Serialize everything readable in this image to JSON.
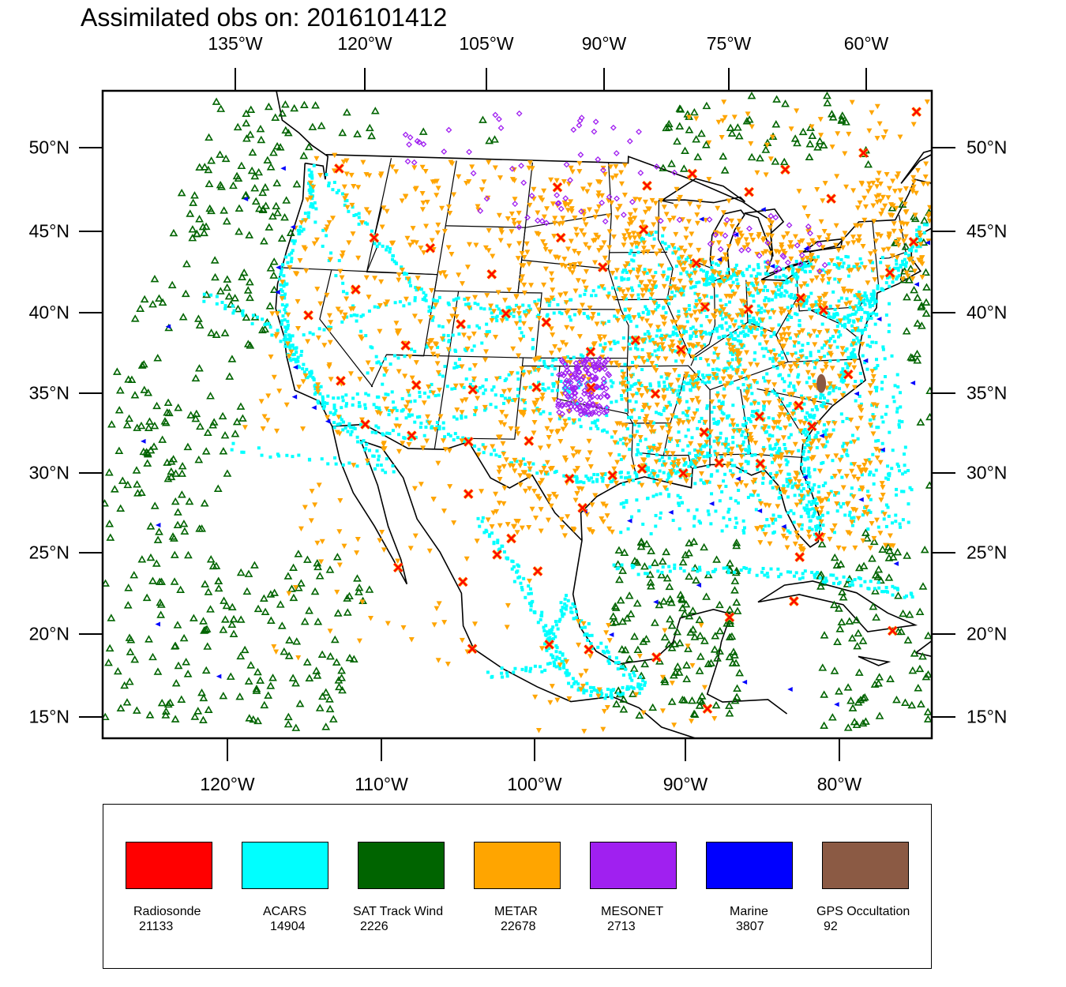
{
  "title": "Assimilated obs on: 2016101412",
  "top_axis_labels": [
    "135°W",
    "120°W",
    "105°W",
    "90°W",
    "75°W",
    "60°W"
  ],
  "bottom_axis_labels": [
    "120°W",
    "110°W",
    "100°W",
    "90°W",
    "80°W"
  ],
  "left_axis_labels": [
    "50°N",
    "45°N",
    "40°N",
    "35°N",
    "30°N",
    "25°N",
    "20°N",
    "15°N"
  ],
  "right_axis_labels": [
    "50°N",
    "45°N",
    "40°N",
    "35°N",
    "30°N",
    "25°N",
    "20°N",
    "15°N"
  ],
  "legend": [
    {
      "name": "Radiosonde",
      "count": "21133",
      "color": "#ff0000",
      "marker": "cross"
    },
    {
      "name": "ACARS",
      "count": "14904",
      "color": "#00ffff",
      "marker": "square"
    },
    {
      "name": "SAT Track Wind",
      "count": "2226",
      "color": "#006400",
      "marker": "triangle"
    },
    {
      "name": "METAR",
      "count": "22678",
      "color": "#ffa500",
      "marker": "down-triangle"
    },
    {
      "name": "MESONET",
      "count": "2713",
      "color": "#a020f0",
      "marker": "diamond"
    },
    {
      "name": "Marine",
      "count": "3807",
      "color": "#0000ff",
      "marker": "left-triangle"
    },
    {
      "name": "GPS Occultation",
      "count": "92",
      "color": "#8b5a44",
      "marker": "blob"
    }
  ],
  "observation_points": {
    "Radiosonde": [
      [
        -121.5,
        48.2
      ],
      [
        -117.0,
        44.1
      ],
      [
        -112.0,
        43.6
      ],
      [
        -106.4,
        42.1
      ],
      [
        -101.5,
        47.5
      ],
      [
        -100.8,
        44.4
      ],
      [
        -97.0,
        42.6
      ],
      [
        -93.4,
        47.6
      ],
      [
        -89.3,
        48.3
      ],
      [
        -93.6,
        44.9
      ],
      [
        -89.0,
        42.8
      ],
      [
        -84.2,
        47.1
      ],
      [
        -80.8,
        48.4
      ],
      [
        -76.9,
        46.5
      ],
      [
        -73.5,
        49.2
      ],
      [
        -68.0,
        51.5
      ],
      [
        -70.2,
        43.6
      ],
      [
        -66.9,
        46.0
      ],
      [
        -72.6,
        41.8
      ],
      [
        -78.5,
        39.7
      ],
      [
        -80.3,
        40.5
      ],
      [
        -84.7,
        39.9
      ],
      [
        -88.3,
        40.1
      ],
      [
        -90.3,
        37.5
      ],
      [
        -94.0,
        38.1
      ],
      [
        -97.6,
        37.4
      ],
      [
        -101.4,
        39.2
      ],
      [
        -104.8,
        39.7
      ],
      [
        -108.4,
        39.0
      ],
      [
        -112.6,
        37.6
      ],
      [
        -117.6,
        40.9
      ],
      [
        -121.0,
        39.2
      ],
      [
        -117.2,
        35.3
      ],
      [
        -111.2,
        35.2
      ],
      [
        -106.7,
        35.0
      ],
      [
        -101.7,
        35.2
      ],
      [
        -97.4,
        35.2
      ],
      [
        -92.3,
        34.8
      ],
      [
        -88.5,
        32.4
      ],
      [
        -84.2,
        33.3
      ],
      [
        -81.1,
        33.9
      ],
      [
        -77.0,
        35.7
      ],
      [
        -80.2,
        32.6
      ],
      [
        -84.3,
        30.4
      ],
      [
        -87.4,
        30.5
      ],
      [
        -90.1,
        29.9
      ],
      [
        -93.2,
        30.2
      ],
      [
        -95.4,
        29.8
      ],
      [
        -97.5,
        27.8
      ],
      [
        -98.6,
        29.6
      ],
      [
        -101.9,
        31.9
      ],
      [
        -106.5,
        31.8
      ],
      [
        -110.9,
        32.1
      ],
      [
        -114.6,
        32.7
      ],
      [
        -106.0,
        28.6
      ],
      [
        -102.5,
        25.9
      ],
      [
        -104.4,
        19.1
      ],
      [
        -99.2,
        19.4
      ],
      [
        -96.5,
        19.1
      ],
      [
        -100.4,
        23.9
      ],
      [
        -103.4,
        24.9
      ],
      [
        -105.6,
        23.2
      ],
      [
        -110.3,
        24.0
      ],
      [
        -91.9,
        18.6
      ],
      [
        -88.5,
        15.4
      ],
      [
        -86.9,
        21.0
      ],
      [
        -80.3,
        25.8
      ],
      [
        -81.8,
        24.6
      ],
      [
        -82.4,
        21.9
      ],
      [
        -75.8,
        19.9
      ]
    ],
    "ACARS_routes": [
      [
        [
          -122.4,
          37.7
        ],
        [
          -118.2,
          34.0
        ],
        [
          -112.0,
          33.4
        ],
        [
          -104.7,
          39.8
        ],
        [
          -97.0,
          32.9
        ],
        [
          -87.9,
          41.9
        ],
        [
          -84.4,
          33.6
        ],
        [
          -73.8,
          40.6
        ]
      ],
      [
        [
          -122.3,
          47.5
        ],
        [
          -116.2,
          43.6
        ],
        [
          -111.9,
          40.7
        ],
        [
          -104.7,
          39.8
        ],
        [
          -94.7,
          39.3
        ],
        [
          -87.9,
          41.9
        ],
        [
          -83.3,
          42.2
        ],
        [
          -71.0,
          42.3
        ]
      ],
      [
        [
          -118.2,
          34.0
        ],
        [
          -106.6,
          35.1
        ],
        [
          -97.0,
          32.9
        ],
        [
          -90.2,
          29.9
        ],
        [
          -84.4,
          33.6
        ],
        [
          -81.3,
          28.4
        ],
        [
          -80.2,
          25.8
        ]
      ],
      [
        [
          -122.6,
          45.6
        ],
        [
          -112.0,
          33.4
        ],
        [
          -106.6,
          31.8
        ],
        [
          -98.5,
          29.5
        ],
        [
          -95.3,
          29.7
        ],
        [
          -90.2,
          29.9
        ],
        [
          -86.8,
          33.6
        ],
        [
          -82.5,
          27.9
        ]
      ],
      [
        [
          -115.1,
          36.1
        ],
        [
          -104.7,
          39.8
        ],
        [
          -96.0,
          41.3
        ],
        [
          -93.2,
          44.9
        ],
        [
          -87.9,
          41.9
        ],
        [
          -80.2,
          40.4
        ],
        [
          -77.0,
          38.9
        ],
        [
          -74.2,
          40.7
        ]
      ],
      [
        [
          -117.2,
          32.7
        ],
        [
          -110.9,
          32.1
        ],
        [
          -101.8,
          35.2
        ],
        [
          -97.5,
          35.4
        ],
        [
          -90.0,
          35.1
        ],
        [
          -86.8,
          36.1
        ],
        [
          -84.5,
          39.1
        ],
        [
          -80.0,
          32.9
        ]
      ],
      [
        [
          -122.4,
          37.7
        ],
        [
          -111.9,
          40.7
        ],
        [
          -106.6,
          35.1
        ],
        [
          -97.3,
          37.6
        ],
        [
          -90.4,
          38.7
        ],
        [
          -85.7,
          38.2
        ],
        [
          -81.7,
          41.4
        ],
        [
          -78.7,
          42.9
        ]
      ],
      [
        [
          -98.0,
          22.0
        ],
        [
          -99.5,
          19.5
        ],
        [
          -97.4,
          17.0
        ],
        [
          -95.0,
          16.3
        ],
        [
          -92.6,
          16.8
        ],
        [
          -96.0,
          19.3
        ],
        [
          -98.5,
          22.5
        ]
      ],
      [
        [
          -105.0,
          27.0
        ],
        [
          -102.0,
          24.0
        ],
        [
          -100.0,
          21.0
        ],
        [
          -98.0,
          18.2
        ],
        [
          -103.3,
          17.5
        ]
      ],
      [
        [
          -95.0,
          24.0
        ],
        [
          -88.0,
          24.0
        ],
        [
          -82.0,
          23.5
        ],
        [
          -78.0,
          23.0
        ],
        [
          -74.0,
          22.0
        ]
      ],
      [
        [
          -130.0,
          40.0
        ],
        [
          -122.0,
          37.8
        ],
        [
          -117.0,
          33.0
        ],
        [
          -112.0,
          30.0
        ],
        [
          -125.0,
          31.0
        ]
      ],
      [
        [
          -124.0,
          48.0
        ],
        [
          -123.0,
          46.0
        ],
        [
          -124.0,
          42.0
        ],
        [
          -123.0,
          39.0
        ],
        [
          -121.0,
          36.0
        ]
      ],
      [
        [
          -80.0,
          26.5
        ],
        [
          -81.0,
          30.0
        ],
        [
          -80.5,
          33.0
        ],
        [
          -77.5,
          35.5
        ],
        [
          -76.0,
          38.0
        ],
        [
          -74.0,
          40.5
        ],
        [
          -71.0,
          42.5
        ],
        [
          -69.0,
          44.5
        ]
      ]
    ],
    "METAR_regions": [
      [
        -124,
        -114,
        32,
        49,
        140
      ],
      [
        -114,
        -104,
        31,
        49,
        190
      ],
      [
        -104,
        -95,
        26,
        49,
        360
      ],
      [
        -95,
        -85,
        29,
        47,
        430
      ],
      [
        -85,
        -75,
        25,
        45,
        420
      ],
      [
        -75,
        -67,
        41,
        48,
        130
      ],
      [
        -118,
        -100,
        18,
        31,
        70
      ],
      [
        -100,
        -88,
        14,
        21,
        40
      ],
      [
        -91,
        -64,
        45,
        53,
        70
      ]
    ],
    "SAT_regions": [
      [
        -135,
        -124,
        14,
        52,
        320
      ],
      [
        -124,
        -112,
        14,
        25,
        130
      ],
      [
        -95,
        -86,
        15,
        26,
        150
      ],
      [
        -81,
        -66,
        14,
        26,
        190
      ],
      [
        -72,
        -64,
        27,
        46,
        150
      ],
      [
        -92,
        -73,
        48,
        53,
        60
      ],
      [
        -124,
        -106,
        50,
        53,
        10
      ]
    ],
    "MESONET_regions": [
      [
        -100,
        -96,
        33.5,
        37,
        150
      ],
      [
        -110,
        -90,
        45,
        52,
        50
      ],
      [
        -88,
        -78,
        42,
        46,
        30
      ],
      [
        -117,
        -112,
        48,
        51,
        10
      ]
    ],
    "Marine_points": [
      [
        -124.5,
        42.0
      ],
      [
        -124.2,
        44.5
      ],
      [
        -124.0,
        40.5
      ],
      [
        -121.0,
        36.0
      ],
      [
        -120.5,
        34.2
      ],
      [
        -118.8,
        33.6
      ],
      [
        -117.5,
        32.8
      ],
      [
        -126.5,
        48.0
      ],
      [
        -129.0,
        46.0
      ],
      [
        -132.0,
        38.0
      ],
      [
        -131.0,
        31.0
      ],
      [
        -128.0,
        26.0
      ],
      [
        -126.0,
        20.0
      ],
      [
        -121.0,
        17.0
      ],
      [
        -97.3,
        27.6
      ],
      [
        -94.0,
        27.0
      ],
      [
        -91.0,
        27.5
      ],
      [
        -88.0,
        28.0
      ],
      [
        -86.0,
        29.5
      ],
      [
        -84.5,
        27.5
      ],
      [
        -82.8,
        26.5
      ],
      [
        -81.0,
        29.5
      ],
      [
        -79.5,
        32.0
      ],
      [
        -76.5,
        34.5
      ],
      [
        -75.5,
        36.5
      ],
      [
        -74.0,
        39.0
      ],
      [
        -70.5,
        41.0
      ],
      [
        -69.0,
        43.5
      ],
      [
        -66.0,
        44.0
      ],
      [
        -70.0,
        38.0
      ],
      [
        -72.0,
        35.0
      ],
      [
        -75.0,
        31.0
      ],
      [
        -77.0,
        28.0
      ],
      [
        -75.0,
        24.0
      ],
      [
        -69.0,
        30.0
      ],
      [
        -66.0,
        34.0
      ],
      [
        -83.0,
        46.0
      ],
      [
        -85.5,
        44.5
      ],
      [
        -87.0,
        43.0
      ],
      [
        -88.5,
        45.5
      ],
      [
        -79.5,
        43.5
      ],
      [
        -82.5,
        42.5
      ],
      [
        -86.0,
        17.0
      ],
      [
        -80.0,
        15.5
      ],
      [
        -83.0,
        16.5
      ],
      [
        -89.0,
        23.0
      ],
      [
        -92.0,
        22.0
      ],
      [
        -95.0,
        20.0
      ]
    ],
    "GPS_points": [
      [
        -79.2,
        35.2
      ]
    ]
  }
}
